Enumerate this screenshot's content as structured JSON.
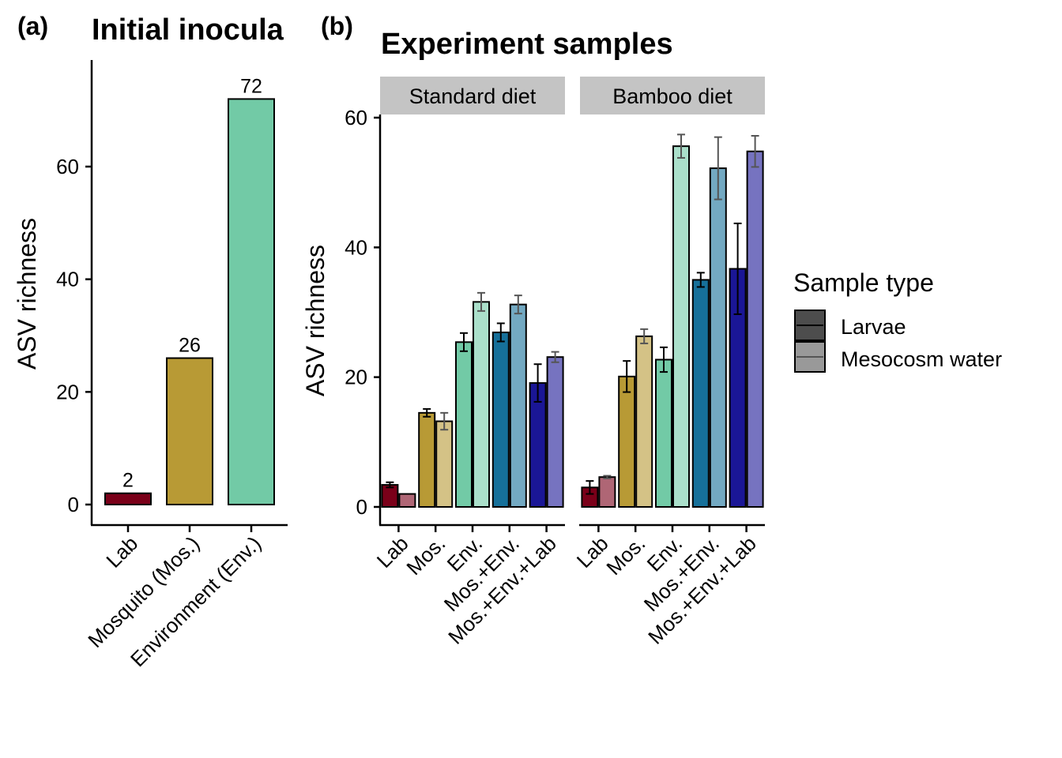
{
  "panel_a": {
    "tag": "(a)",
    "title": "Initial inocula",
    "ylabel": "ASV richness",
    "yticks": [
      "0",
      "20",
      "40",
      "60"
    ]
  },
  "panel_b": {
    "tag": "(b)",
    "title": "Experiment samples",
    "ylabel": "ASV richness",
    "yticks": [
      "0",
      "20",
      "40",
      "60"
    ],
    "facets": [
      "Standard diet",
      "Bamboo diet"
    ]
  },
  "legend": {
    "title": "Sample type",
    "items": [
      "Larvae",
      "Mesocosm water"
    ]
  },
  "colors": {
    "lab": "#7a0019",
    "mos": "#b89a35",
    "env": "#72caa6",
    "mos_env": "#16709a",
    "mos_env_lab": "#1a1696",
    "facet_strip": "#c4c4c4"
  },
  "chart_data": [
    {
      "type": "bar",
      "title": "Initial inocula",
      "xlabel": "",
      "ylabel": "ASV richness",
      "categories": [
        "Lab",
        "Mosquito (Mos.)",
        "Environment (Env.)"
      ],
      "values": [
        2,
        26,
        72
      ],
      "data_labels": [
        "2",
        "26",
        "72"
      ],
      "ylim": [
        0,
        77
      ],
      "grid": false
    },
    {
      "type": "bar",
      "title": "Experiment samples",
      "xlabel": "",
      "ylabel": "ASV richness",
      "ylim": [
        0,
        61
      ],
      "grid": false,
      "legend_position": "right",
      "categories": [
        "Lab",
        "Mos.",
        "Env.",
        "Mos.+Env.",
        "Mos.+Env.+Lab"
      ],
      "facets": [
        {
          "name": "Standard diet",
          "series": [
            {
              "name": "Larvae",
              "values": [
                3.4,
                14.5,
                25.4,
                26.9,
                19.1
              ],
              "error": [
                0.4,
                0.6,
                1.4,
                1.4,
                2.9
              ]
            },
            {
              "name": "Mesocosm water",
              "values": [
                2.0,
                13.2,
                31.6,
                31.2,
                23.1
              ],
              "error": [
                0.0,
                1.3,
                1.4,
                1.4,
                0.8
              ]
            }
          ]
        },
        {
          "name": "Bamboo diet",
          "series": [
            {
              "name": "Larvae",
              "values": [
                3.0,
                20.1,
                22.7,
                35.0,
                36.7
              ],
              "error": [
                1.0,
                2.4,
                1.9,
                1.1,
                7.0
              ]
            },
            {
              "name": "Mesocosm water",
              "values": [
                4.6,
                26.3,
                55.6,
                52.2,
                54.8
              ],
              "error": [
                0.2,
                1.1,
                1.8,
                4.8,
                2.4
              ]
            }
          ]
        }
      ]
    }
  ]
}
